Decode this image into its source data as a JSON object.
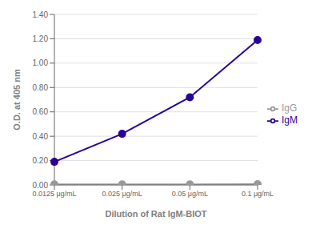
{
  "chart_data": {
    "type": "line",
    "xlabel": "Dilution of Rat IgM-BIOT",
    "ylabel": "O.D. at 405 nm",
    "categories": [
      "0.0125 μg/mL",
      "0.025 μg/mL",
      "0.05 μg/mL",
      "0.1 μg/mL"
    ],
    "series": [
      {
        "name": "IgG",
        "color": "#999999",
        "marker": "circle",
        "values": [
          0.005,
          0.005,
          0.005,
          0.007
        ]
      },
      {
        "name": "IgM",
        "color": "#2a009a",
        "marker": "circle",
        "values": [
          0.19,
          0.42,
          0.72,
          1.19
        ]
      }
    ],
    "ylim": [
      0.0,
      1.4
    ],
    "yticks": [
      {
        "value": 0,
        "label": "0.00"
      },
      {
        "value": 0.2,
        "label": "0.20"
      },
      {
        "value": 0.4,
        "label": "0.40"
      },
      {
        "value": 0.6,
        "label": "0.60"
      },
      {
        "value": 0.8,
        "label": "0.80"
      },
      {
        "value": 1.0,
        "label": "1.00"
      },
      {
        "value": 1.2,
        "label": "1.20"
      },
      {
        "value": 1.4,
        "label": "1.40"
      }
    ],
    "grid": true,
    "legend": "right"
  }
}
